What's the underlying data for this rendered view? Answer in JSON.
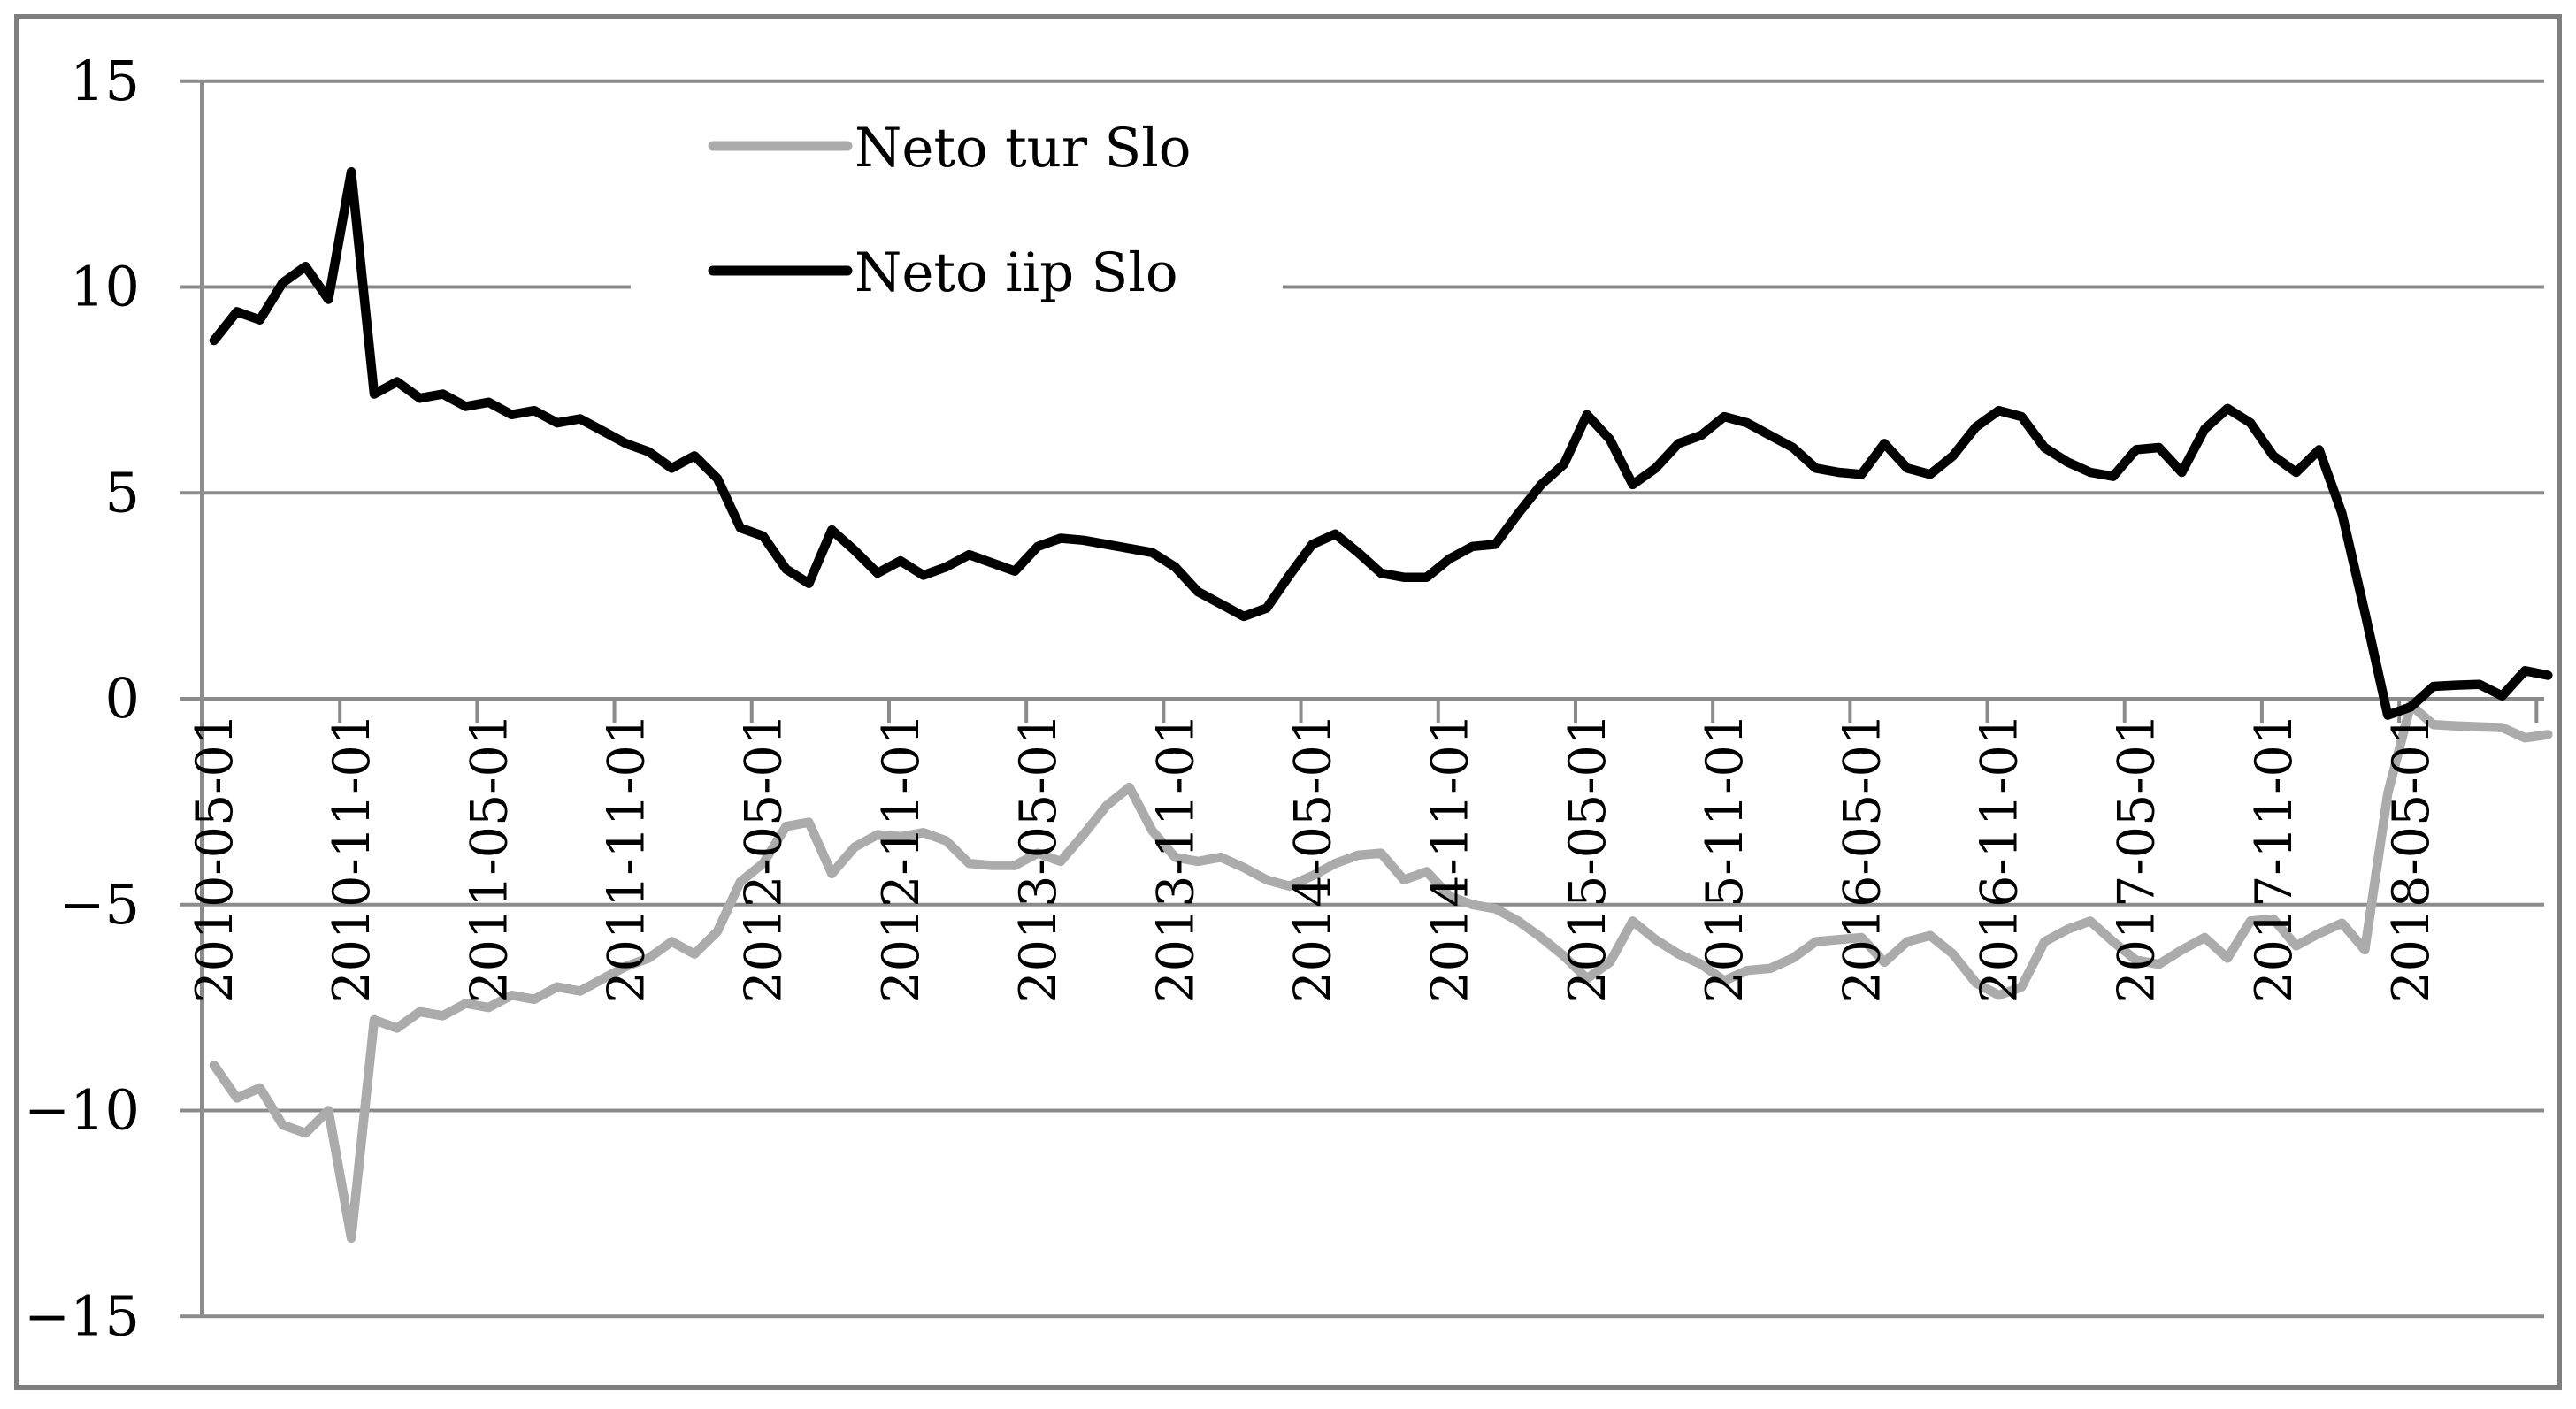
{
  "chart_data": {
    "type": "line",
    "title": "",
    "xlabel": "",
    "ylabel": "",
    "ylim": [
      -15,
      15
    ],
    "ytick_step": 5,
    "grid": true,
    "legend_position": "top-center-inside",
    "y_tick_labels": [
      "15",
      "10",
      "5",
      "0",
      "−5",
      "−10",
      "−15"
    ],
    "y_tick_values": [
      15,
      10,
      5,
      0,
      -5,
      -10,
      -15
    ],
    "x_tick_labels": [
      "2010-05-01",
      "2010-11-01",
      "2011-05-01",
      "2011-11-01",
      "2012-05-01",
      "2012-11-01",
      "2013-05-01",
      "2013-11-01",
      "2014-05-01",
      "2014-11-01",
      "2015-05-01",
      "2015-11-01",
      "2016-05-01",
      "2016-11-01",
      "2017-05-01",
      "2017-11-01",
      "2018-05-01"
    ],
    "x_tick_every_n_points": 6,
    "x": [
      "2010-05",
      "2010-06",
      "2010-07",
      "2010-08",
      "2010-09",
      "2010-10",
      "2010-11",
      "2010-12",
      "2011-01",
      "2011-02",
      "2011-03",
      "2011-04",
      "2011-05",
      "2011-06",
      "2011-07",
      "2011-08",
      "2011-09",
      "2011-10",
      "2011-11",
      "2011-12",
      "2012-01",
      "2012-02",
      "2012-03",
      "2012-04",
      "2012-05",
      "2012-06",
      "2012-07",
      "2012-08",
      "2012-09",
      "2012-10",
      "2012-11",
      "2012-12",
      "2013-01",
      "2013-02",
      "2013-03",
      "2013-04",
      "2013-05",
      "2013-06",
      "2013-07",
      "2013-08",
      "2013-09",
      "2013-10",
      "2013-11",
      "2013-12",
      "2014-01",
      "2014-02",
      "2014-03",
      "2014-04",
      "2014-05",
      "2014-06",
      "2014-07",
      "2014-08",
      "2014-09",
      "2014-10",
      "2014-11",
      "2014-12",
      "2015-01",
      "2015-02",
      "2015-03",
      "2015-04",
      "2015-05",
      "2015-06",
      "2015-07",
      "2015-08",
      "2015-09",
      "2015-10",
      "2015-11",
      "2015-12",
      "2016-01",
      "2016-02",
      "2016-03",
      "2016-04",
      "2016-05",
      "2016-06",
      "2016-07",
      "2016-08",
      "2016-09",
      "2016-10",
      "2016-11",
      "2016-12",
      "2017-01",
      "2017-02",
      "2017-03",
      "2017-04",
      "2017-05",
      "2017-06",
      "2017-07",
      "2017-08",
      "2017-09",
      "2017-10",
      "2017-11",
      "2017-12",
      "2018-01",
      "2018-02",
      "2018-03",
      "2018-04",
      "2018-05",
      "2018-06",
      "2018-07",
      "2018-08",
      "2018-09",
      "2018-10",
      "2018-11"
    ],
    "series": [
      {
        "name": "Neto tur Slo",
        "color": "#ababab",
        "values": [
          -8.9,
          -9.7,
          -9.45,
          -10.35,
          -10.55,
          -10.0,
          -13.1,
          -7.8,
          -8.0,
          -7.6,
          -7.7,
          -7.4,
          -7.5,
          -7.2,
          -7.3,
          -7.0,
          -7.1,
          -6.8,
          -6.5,
          -6.3,
          -5.9,
          -6.2,
          -5.65,
          -4.45,
          -4.0,
          -3.1,
          -3.0,
          -4.25,
          -3.6,
          -3.3,
          -3.35,
          -3.25,
          -3.45,
          -4.0,
          -4.05,
          -4.05,
          -3.75,
          -3.95,
          -3.3,
          -2.6,
          -2.15,
          -3.2,
          -3.85,
          -3.95,
          -3.85,
          -4.1,
          -4.4,
          -4.55,
          -4.3,
          -4.0,
          -3.8,
          -3.75,
          -4.4,
          -4.2,
          -4.8,
          -5.0,
          -5.1,
          -5.4,
          -5.8,
          -6.25,
          -6.8,
          -6.4,
          -5.4,
          -5.85,
          -6.2,
          -6.45,
          -6.85,
          -6.6,
          -6.55,
          -6.3,
          -5.9,
          -5.85,
          -5.8,
          -6.4,
          -5.9,
          -5.75,
          -6.2,
          -6.9,
          -7.2,
          -7.0,
          -5.9,
          -5.6,
          -5.4,
          -5.9,
          -6.35,
          -6.45,
          -6.1,
          -5.8,
          -6.3,
          -5.4,
          -5.35,
          -6.0,
          -5.7,
          -5.45,
          -6.1,
          -2.3,
          -0.15,
          -0.63,
          -0.66,
          -0.68,
          -0.7,
          -0.95,
          -0.87
        ]
      },
      {
        "name": "Neto iip Slo",
        "color": "#000000",
        "values": [
          8.7,
          9.4,
          9.2,
          10.1,
          10.5,
          9.7,
          12.8,
          7.4,
          7.7,
          7.3,
          7.4,
          7.1,
          7.2,
          6.9,
          7.0,
          6.7,
          6.8,
          6.5,
          6.2,
          6.0,
          5.6,
          5.9,
          5.35,
          4.15,
          3.95,
          3.15,
          2.8,
          4.1,
          3.6,
          3.05,
          3.35,
          3.0,
          3.2,
          3.5,
          3.3,
          3.1,
          3.7,
          3.9,
          3.85,
          3.75,
          3.65,
          3.55,
          3.2,
          2.6,
          2.3,
          2.0,
          2.2,
          3.0,
          3.75,
          4.0,
          3.55,
          3.05,
          2.95,
          2.95,
          3.4,
          3.7,
          3.75,
          4.5,
          5.2,
          5.7,
          6.9,
          6.3,
          5.2,
          5.6,
          6.2,
          6.4,
          6.85,
          6.7,
          6.4,
          6.1,
          5.6,
          5.5,
          5.45,
          6.2,
          5.6,
          5.45,
          5.9,
          6.6,
          7.0,
          6.85,
          6.1,
          5.75,
          5.5,
          5.4,
          6.05,
          6.1,
          5.5,
          6.55,
          7.05,
          6.7,
          5.9,
          5.5,
          6.05,
          4.5,
          2.1,
          -0.4,
          -0.2,
          0.3,
          0.33,
          0.35,
          0.07,
          0.68,
          0.57
        ]
      }
    ]
  },
  "legend": {
    "entries": [
      {
        "label": "Neto tur Slo"
      },
      {
        "label": "Neto iip Slo"
      }
    ]
  },
  "colors": {
    "background": "#ffffff",
    "gridline": "#8b8b8b",
    "axis": "#8b8b8b",
    "chart_border": "#7e7e7e",
    "text": "#000000",
    "series_gray": "#ababab",
    "series_black": "#000000"
  }
}
